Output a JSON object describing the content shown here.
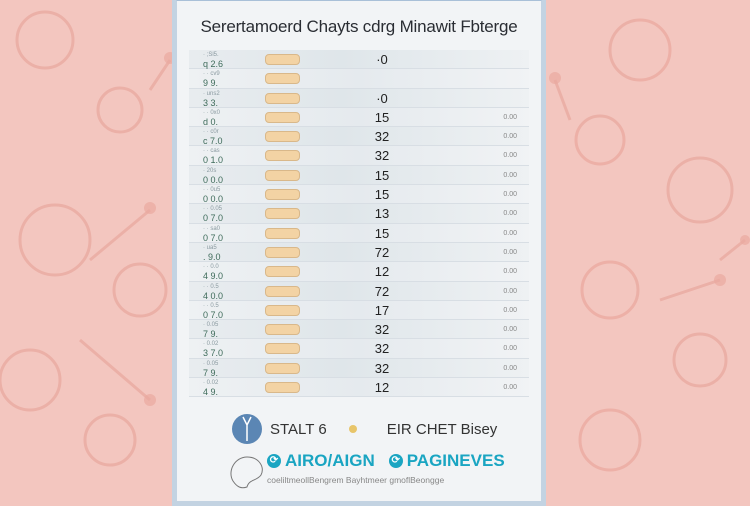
{
  "title": "Serertamoerd Chayts cdrg Minawit Fbterge",
  "rows": [
    {
      "label": "q 2.6",
      "sub": "· ;Sl5.",
      "value": "·0",
      "right": ""
    },
    {
      "label": "9 9.",
      "sub": "· · cv9",
      "value": "",
      "right": ""
    },
    {
      "label": "3 3.",
      "sub": "· uns2",
      "value": "·0",
      "right": ""
    },
    {
      "label": "d 0.",
      "sub": "· · 0x0",
      "value": "15",
      "right": "0.00"
    },
    {
      "label": "c 7.0",
      "sub": "· · c0r",
      "value": "32",
      "right": "0.00"
    },
    {
      "label": "0 1.0",
      "sub": "· · cas",
      "value": "32",
      "right": "0.00"
    },
    {
      "label": "0 0.0",
      "sub": "· 20s",
      "value": "15",
      "right": "0.00"
    },
    {
      "label": "0 0.0",
      "sub": "· · 0u5",
      "value": "15",
      "right": "0.00"
    },
    {
      "label": "0 7.0",
      "sub": "· · 0.05",
      "value": "13",
      "right": "0.00"
    },
    {
      "label": "0 7.0",
      "sub": "· · sa0",
      "value": "15",
      "right": "0.00"
    },
    {
      "label": ". 9.0",
      "sub": "· ua5",
      "value": "72",
      "right": "0.00"
    },
    {
      "label": "4 9.0",
      "sub": "· · 0.0",
      "value": "12",
      "right": "0.00"
    },
    {
      "label": "4 0.0",
      "sub": "· · 0.5",
      "value": "72",
      "right": "0.00"
    },
    {
      "label": "0 7.0",
      "sub": "· · 0.5",
      "value": "17",
      "right": "0.00"
    },
    {
      "label": "7 9.",
      "sub": "· 0.05",
      "value": "32",
      "right": "0.00"
    },
    {
      "label": "3 7.0",
      "sub": "· 0.02",
      "value": "32",
      "right": "0.00"
    },
    {
      "label": "7 9.",
      "sub": "· 0.05",
      "value": "32",
      "right": "0.00"
    },
    {
      "label": "4 9.",
      "sub": "· 0.02",
      "value": "12",
      "right": "0.00"
    }
  ],
  "legend": {
    "item1": "STALT 6",
    "item2": "EIR CHET Bisey",
    "link1": "AIRO/AIGN",
    "link2": "PAGINEVES",
    "footer": "coeliltmeollBengrem Bayhtmeer gmoflBeongge"
  },
  "colors": {
    "background": "#f3c6bf",
    "bar": "#f3d3a4",
    "accent": "#1aa5c2",
    "blue": "#5b86b4"
  }
}
